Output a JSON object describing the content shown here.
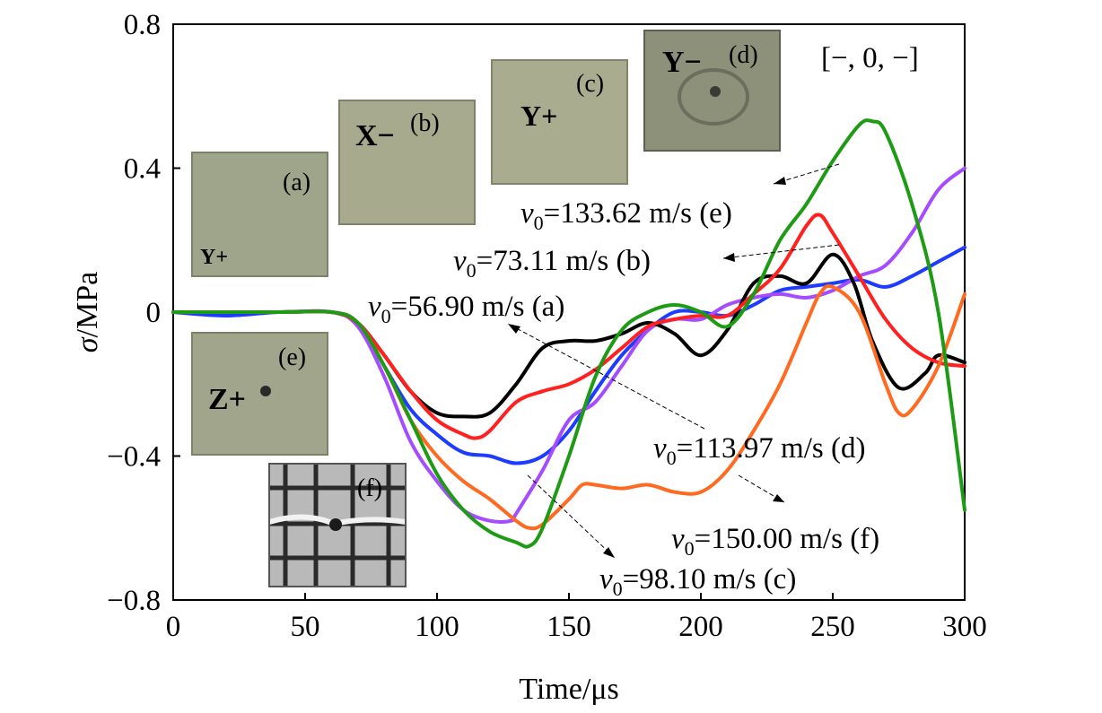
{
  "chart_data": {
    "type": "line",
    "xlabel": "Time/μs",
    "ylabel_symbol": "σ",
    "ylabel_unit": "/MPa",
    "xlim": [
      0,
      300
    ],
    "ylim": [
      -0.8,
      0.8
    ],
    "xticks": [
      0,
      50,
      100,
      150,
      200,
      250,
      300
    ],
    "xtick_labels": [
      "0",
      "50",
      "100",
      "150",
      "200",
      "250",
      "300"
    ],
    "yticks": [
      -0.8,
      -0.4,
      0,
      0.4,
      0.8
    ],
    "ytick_labels": [
      "−0.8",
      "−0.4",
      "0",
      "0.4",
      "0.8"
    ],
    "grid": false,
    "legend": "none",
    "corner_label": "[−, 0, −]",
    "series": [
      {
        "id": "a",
        "color": "#000000",
        "x": [
          0,
          40,
          60,
          70,
          80,
          90,
          100,
          110,
          120,
          130,
          140,
          150,
          160,
          170,
          180,
          190,
          200,
          210,
          220,
          230,
          240,
          250,
          258,
          265,
          275,
          285,
          290,
          300
        ],
        "y": [
          0.0,
          0.0,
          0.0,
          -0.03,
          -0.12,
          -0.22,
          -0.28,
          -0.29,
          -0.28,
          -0.2,
          -0.1,
          -0.08,
          -0.08,
          -0.06,
          -0.03,
          -0.06,
          -0.12,
          -0.05,
          0.08,
          0.1,
          0.08,
          0.16,
          0.08,
          -0.08,
          -0.21,
          -0.17,
          -0.12,
          -0.14
        ]
      },
      {
        "id": "b",
        "color": "#ff2020",
        "x": [
          0,
          40,
          60,
          70,
          80,
          90,
          100,
          110,
          115,
          120,
          130,
          140,
          150,
          160,
          170,
          180,
          190,
          200,
          210,
          220,
          230,
          240,
          245,
          250,
          260,
          270,
          280,
          290,
          300
        ],
        "y": [
          0.0,
          0.0,
          0.0,
          -0.03,
          -0.12,
          -0.22,
          -0.3,
          -0.34,
          -0.35,
          -0.33,
          -0.25,
          -0.22,
          -0.2,
          -0.16,
          -0.1,
          -0.04,
          -0.02,
          -0.01,
          -0.01,
          0.05,
          0.12,
          0.24,
          0.27,
          0.22,
          0.1,
          -0.02,
          -0.1,
          -0.14,
          -0.15
        ]
      },
      {
        "id": "c",
        "color": "#1e3cff",
        "x": [
          0,
          20,
          40,
          60,
          70,
          80,
          90,
          100,
          110,
          120,
          130,
          140,
          150,
          160,
          170,
          180,
          190,
          200,
          210,
          220,
          230,
          240,
          250,
          260,
          270,
          280,
          290,
          300
        ],
        "y": [
          0.0,
          -0.01,
          0.0,
          0.0,
          -0.03,
          -0.15,
          -0.27,
          -0.34,
          -0.39,
          -0.4,
          -0.42,
          -0.4,
          -0.33,
          -0.22,
          -0.12,
          -0.05,
          0.0,
          0.0,
          -0.01,
          0.02,
          0.06,
          0.07,
          0.08,
          0.09,
          0.07,
          0.1,
          0.14,
          0.18
        ]
      },
      {
        "id": "d",
        "color": "#a64cff",
        "x": [
          0,
          40,
          60,
          70,
          80,
          90,
          100,
          110,
          120,
          128,
          130,
          140,
          150,
          160,
          170,
          180,
          190,
          200,
          210,
          220,
          230,
          240,
          250,
          260,
          270,
          280,
          290,
          300
        ],
        "y": [
          0.0,
          0.0,
          0.0,
          -0.04,
          -0.18,
          -0.36,
          -0.47,
          -0.55,
          -0.58,
          -0.58,
          -0.56,
          -0.44,
          -0.3,
          -0.25,
          -0.15,
          -0.05,
          -0.02,
          -0.02,
          0.02,
          0.04,
          0.05,
          0.04,
          0.06,
          0.1,
          0.13,
          0.22,
          0.34,
          0.4
        ]
      },
      {
        "id": "e",
        "color": "#1e9b14",
        "x": [
          0,
          40,
          60,
          70,
          80,
          90,
          100,
          110,
          120,
          130,
          135,
          140,
          150,
          160,
          170,
          180,
          190,
          200,
          210,
          220,
          230,
          240,
          250,
          260,
          265,
          270,
          280,
          290,
          300
        ],
        "y": [
          0.0,
          0.0,
          0.0,
          -0.03,
          -0.15,
          -0.3,
          -0.45,
          -0.55,
          -0.61,
          -0.64,
          -0.65,
          -0.6,
          -0.4,
          -0.18,
          -0.05,
          0.0,
          0.02,
          0.0,
          -0.04,
          0.05,
          0.2,
          0.3,
          0.42,
          0.52,
          0.53,
          0.5,
          0.3,
          0.0,
          -0.55
        ]
      },
      {
        "id": "f",
        "color": "#ff6a20",
        "x": [
          0,
          40,
          60,
          70,
          80,
          90,
          100,
          110,
          120,
          130,
          135,
          140,
          150,
          155,
          160,
          170,
          180,
          190,
          200,
          210,
          220,
          230,
          240,
          245,
          250,
          260,
          270,
          275,
          280,
          290,
          300
        ],
        "y": [
          0.0,
          0.0,
          0.0,
          -0.03,
          -0.15,
          -0.3,
          -0.4,
          -0.47,
          -0.52,
          -0.58,
          -0.6,
          -0.59,
          -0.52,
          -0.48,
          -0.48,
          -0.49,
          -0.48,
          -0.5,
          -0.5,
          -0.44,
          -0.33,
          -0.2,
          -0.03,
          0.05,
          0.07,
          0.0,
          -0.2,
          -0.28,
          -0.27,
          -0.15,
          0.05
        ]
      }
    ],
    "annotations": [
      {
        "id": "e",
        "prefix": "v",
        "sub": "0",
        "text": "=133.62 m/s (e)"
      },
      {
        "id": "b",
        "prefix": "v",
        "sub": "0",
        "text": "=73.11 m/s (b)"
      },
      {
        "id": "a",
        "prefix": "v",
        "sub": "0",
        "text": "=56.90 m/s (a)"
      },
      {
        "id": "d",
        "prefix": "v",
        "sub": "0",
        "text": "=113.97 m/s (d)"
      },
      {
        "id": "f",
        "prefix": "v",
        "sub": "0",
        "text": "=150.00 m/s (f)"
      },
      {
        "id": "c",
        "prefix": "v",
        "sub": "0",
        "text": "=98.10 m/s (c)"
      }
    ],
    "photo_labels": [
      "(a)",
      "(b)",
      "(c)",
      "(d)",
      "(e)",
      "(f)"
    ]
  },
  "photo_marks": {
    "a": "Y+",
    "b": "X−",
    "c": "Y+",
    "d": "Y−",
    "e": "Z+"
  }
}
